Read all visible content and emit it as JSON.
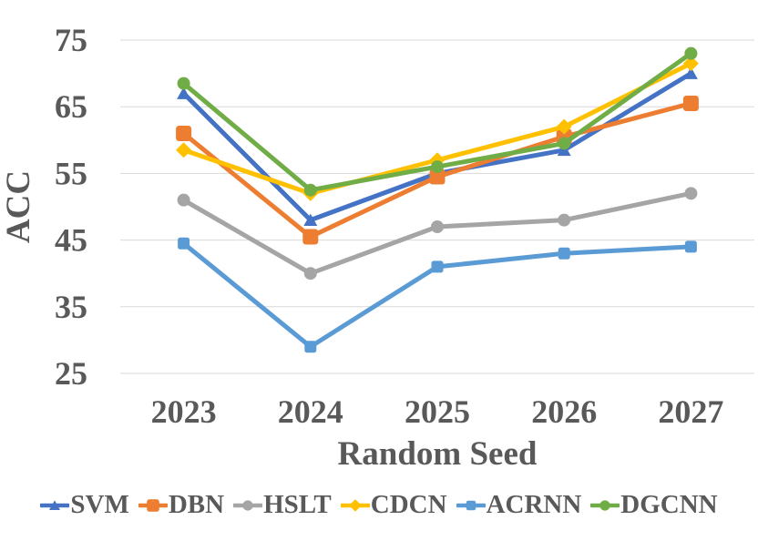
{
  "chart_data": {
    "type": "line",
    "title": "",
    "xlabel": "Random Seed",
    "ylabel": "ACC",
    "categories": [
      "2023",
      "2024",
      "2025",
      "2026",
      "2027"
    ],
    "ylim": [
      25,
      75
    ],
    "yticks": [
      25,
      35,
      45,
      55,
      65,
      75
    ],
    "grid": true,
    "legend_position": "bottom",
    "axis_text_color": "#595959",
    "gridline_color": "#d9d9d9",
    "series": [
      {
        "name": "SVM",
        "color": "#4472C4",
        "marker": "triangle",
        "marker_size": 15,
        "values": [
          67,
          48,
          55,
          58.5,
          70
        ]
      },
      {
        "name": "DBN",
        "color": "#ED7D31",
        "marker": "square",
        "marker_size": 17,
        "values": [
          61,
          45.5,
          54.5,
          60.5,
          65.5
        ]
      },
      {
        "name": "HSLT",
        "color": "#A5A5A5",
        "marker": "circle",
        "marker_size": 14,
        "values": [
          51,
          40,
          47,
          48,
          52
        ]
      },
      {
        "name": "CDCN",
        "color": "#FFC000",
        "marker": "diamond",
        "marker_size": 17,
        "values": [
          58.5,
          52,
          57,
          62,
          71.5
        ]
      },
      {
        "name": "ACRNN",
        "color": "#5B9BD5",
        "marker": "square",
        "marker_size": 13,
        "values": [
          44.5,
          29,
          41,
          43,
          44
        ]
      },
      {
        "name": "DGCNN",
        "color": "#70AD47",
        "marker": "circle",
        "marker_size": 14,
        "values": [
          68.5,
          52.5,
          56,
          59.5,
          73
        ]
      }
    ]
  }
}
